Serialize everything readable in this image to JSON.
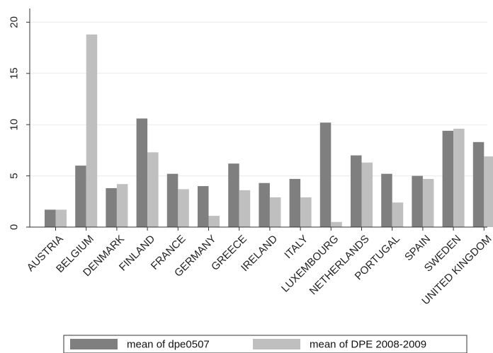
{
  "chart_data": {
    "type": "bar",
    "categories": [
      "AUSTRIA",
      "BELGIUM",
      "DENMARK",
      "FINLAND",
      "FRANCE",
      "GERMANY",
      "GREECE",
      "IRELAND",
      "ITALY",
      "LUXEMBOURG",
      "NETHERLANDS",
      "PORTUGAL",
      "SPAIN",
      "SWEDEN",
      "UNITED KINGDOM"
    ],
    "series": [
      {
        "name": "mean of dpe0507",
        "color": "#7f7f7f",
        "values": [
          1.7,
          6.0,
          3.8,
          10.6,
          5.2,
          4.0,
          6.2,
          4.3,
          4.7,
          10.2,
          7.0,
          5.2,
          5.0,
          9.4,
          8.3
        ]
      },
      {
        "name": "mean of DPE 2008-2009",
        "color": "#bfbfbf",
        "values": [
          1.7,
          18.8,
          4.2,
          7.3,
          3.7,
          1.1,
          3.6,
          2.9,
          2.9,
          0.5,
          6.3,
          2.4,
          4.7,
          9.6,
          6.9
        ]
      }
    ],
    "yticks": [
      "0",
      "5",
      "10",
      "15",
      "20"
    ],
    "ylim": [
      0,
      21.2
    ],
    "grid": true,
    "legend_position": "bottom"
  }
}
